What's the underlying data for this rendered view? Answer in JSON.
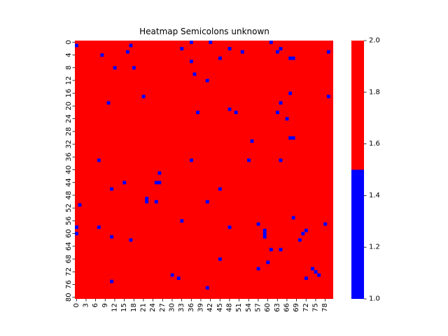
{
  "chart_data": {
    "type": "heatmap",
    "title": "Heatmap Semicolons unknown",
    "xlabel": "",
    "ylabel": "",
    "n_rows": 81,
    "n_cols": 81,
    "background_value": 2,
    "x_tick_labels": [
      "0",
      "3",
      "6",
      "9",
      "12",
      "15",
      "18",
      "21",
      "24",
      "27",
      "30",
      "33",
      "36",
      "39",
      "42",
      "45",
      "48",
      "51",
      "54",
      "57",
      "60",
      "63",
      "66",
      "69",
      "72",
      "75",
      "78"
    ],
    "y_tick_labels": [
      "0",
      "4",
      "8",
      "12",
      "16",
      "20",
      "24",
      "28",
      "32",
      "36",
      "40",
      "44",
      "48",
      "52",
      "56",
      "60",
      "64",
      "68",
      "72",
      "76",
      "80"
    ],
    "colorbar": {
      "range": [
        1.0,
        2.0
      ],
      "tick_labels": [
        "1.0",
        "1.2",
        "1.4",
        "1.6",
        "1.8",
        "2.0"
      ],
      "segments": [
        {
          "from": 1.0,
          "to": 1.5,
          "color": "#0000ff"
        },
        {
          "from": 1.5,
          "to": 2.0,
          "color": "#ff0000"
        }
      ]
    },
    "colors": {
      "low": "#0000ff",
      "high": "#ff0000"
    },
    "low_cells": [
      [
        0,
        36
      ],
      [
        0,
        42
      ],
      [
        0,
        61
      ],
      [
        1,
        0
      ],
      [
        1,
        17
      ],
      [
        2,
        33
      ],
      [
        2,
        48
      ],
      [
        2,
        64
      ],
      [
        3,
        16
      ],
      [
        3,
        52
      ],
      [
        3,
        63
      ],
      [
        3,
        79
      ],
      [
        4,
        8
      ],
      [
        5,
        45
      ],
      [
        5,
        67
      ],
      [
        5,
        68
      ],
      [
        6,
        36
      ],
      [
        8,
        12
      ],
      [
        8,
        18
      ],
      [
        10,
        37
      ],
      [
        12,
        41
      ],
      [
        16,
        67
      ],
      [
        17,
        21
      ],
      [
        17,
        79
      ],
      [
        19,
        10
      ],
      [
        19,
        64
      ],
      [
        21,
        48
      ],
      [
        22,
        38
      ],
      [
        22,
        50
      ],
      [
        22,
        63
      ],
      [
        24,
        66
      ],
      [
        30,
        67
      ],
      [
        30,
        68
      ],
      [
        31,
        55
      ],
      [
        37,
        7
      ],
      [
        37,
        36
      ],
      [
        37,
        54
      ],
      [
        37,
        64
      ],
      [
        41,
        26
      ],
      [
        44,
        15
      ],
      [
        44,
        25
      ],
      [
        44,
        26
      ],
      [
        46,
        11
      ],
      [
        46,
        45
      ],
      [
        49,
        22
      ],
      [
        50,
        22
      ],
      [
        50,
        25
      ],
      [
        50,
        41
      ],
      [
        51,
        1
      ],
      [
        55,
        68
      ],
      [
        56,
        33
      ],
      [
        57,
        57
      ],
      [
        57,
        78
      ],
      [
        58,
        0
      ],
      [
        58,
        7
      ],
      [
        58,
        48
      ],
      [
        59,
        59
      ],
      [
        59,
        72
      ],
      [
        60,
        0
      ],
      [
        60,
        59
      ],
      [
        60,
        71
      ],
      [
        61,
        11
      ],
      [
        61,
        59
      ],
      [
        62,
        17
      ],
      [
        62,
        70
      ],
      [
        65,
        61
      ],
      [
        65,
        64
      ],
      [
        68,
        45
      ],
      [
        69,
        60
      ],
      [
        71,
        57
      ],
      [
        71,
        74
      ],
      [
        72,
        75
      ],
      [
        73,
        30
      ],
      [
        73,
        76
      ],
      [
        74,
        32
      ],
      [
        74,
        72
      ],
      [
        75,
        11
      ],
      [
        77,
        41
      ]
    ]
  }
}
